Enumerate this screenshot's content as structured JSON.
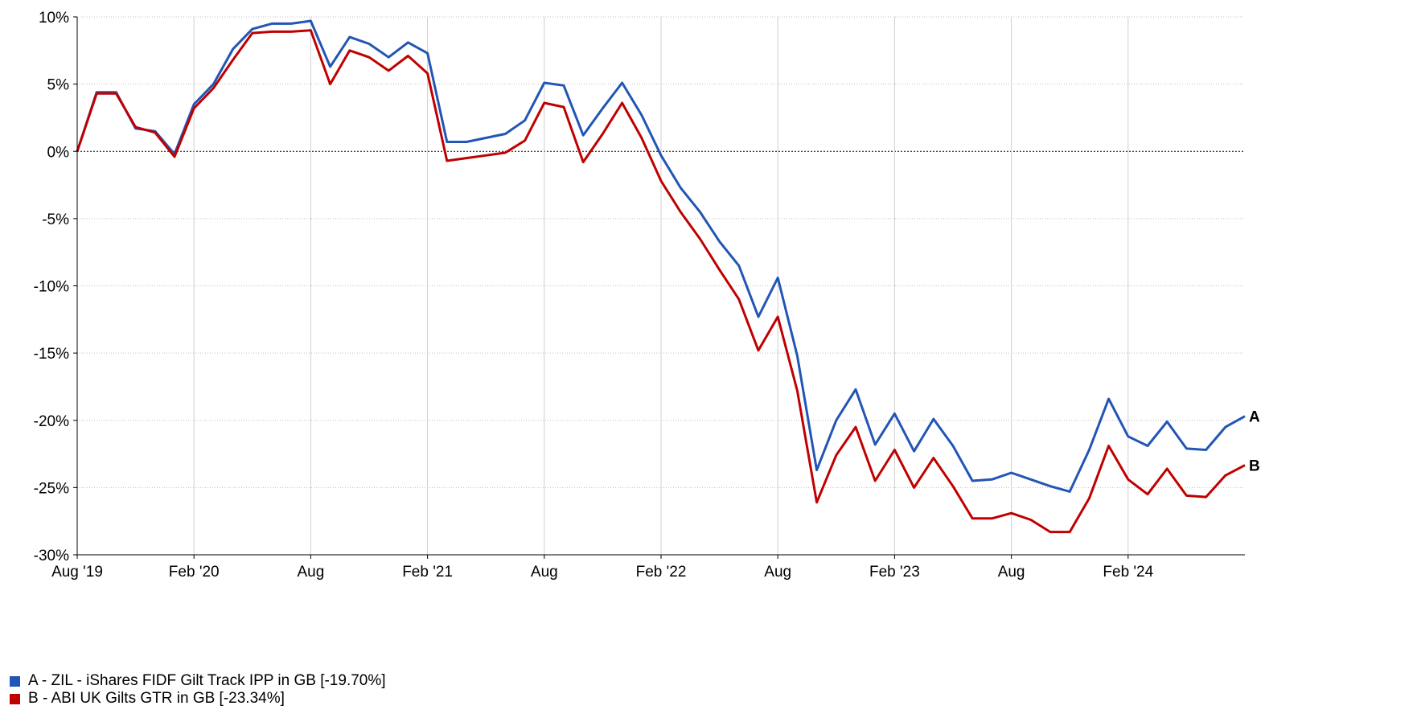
{
  "chart_data": {
    "type": "line",
    "title": "",
    "xlabel": "",
    "ylabel": "",
    "ylim": [
      -30,
      10
    ],
    "y_ticks": [
      "10%",
      "5%",
      "0%",
      "-5%",
      "-10%",
      "-15%",
      "-20%",
      "-25%",
      "-30%"
    ],
    "y_tick_values": [
      10,
      5,
      0,
      -5,
      -10,
      -15,
      -20,
      -25,
      -30
    ],
    "x_ticks": [
      {
        "label": "Aug '19",
        "date": "2019-08"
      },
      {
        "label": "Feb '20",
        "date": "2020-02"
      },
      {
        "label": "Aug",
        "date": "2020-08"
      },
      {
        "label": "Feb '21",
        "date": "2021-02"
      },
      {
        "label": "Aug",
        "date": "2021-08"
      },
      {
        "label": "Feb '22",
        "date": "2022-02"
      },
      {
        "label": "Aug",
        "date": "2022-08"
      },
      {
        "label": "Feb '23",
        "date": "2023-02"
      },
      {
        "label": "Aug",
        "date": "2023-08"
      },
      {
        "label": "Feb '24",
        "date": "2024-02"
      }
    ],
    "xlim": [
      "2019-08",
      "2024-08"
    ],
    "grid": true,
    "zero_line": "dotted",
    "legend_position": "bottom-left",
    "x": [
      "2019-08",
      "2019-09",
      "2019-10",
      "2019-11",
      "2019-12",
      "2020-01",
      "2020-02",
      "2020-03",
      "2020-04",
      "2020-05",
      "2020-06",
      "2020-07",
      "2020-08",
      "2020-09",
      "2020-10",
      "2020-11",
      "2020-12",
      "2021-01",
      "2021-02",
      "2021-03",
      "2021-04",
      "2021-05",
      "2021-06",
      "2021-07",
      "2021-08",
      "2021-09",
      "2021-10",
      "2021-11",
      "2021-12",
      "2022-01",
      "2022-02",
      "2022-03",
      "2022-04",
      "2022-05",
      "2022-06",
      "2022-07",
      "2022-08",
      "2022-09",
      "2022-10",
      "2022-11",
      "2022-12",
      "2023-01",
      "2023-02",
      "2023-03",
      "2023-04",
      "2023-05",
      "2023-06",
      "2023-07",
      "2023-08",
      "2023-09",
      "2023-10",
      "2023-11",
      "2023-12",
      "2024-01",
      "2024-02",
      "2024-03",
      "2024-04",
      "2024-05",
      "2024-06",
      "2024-07",
      "2024-08"
    ],
    "series": [
      {
        "name": "A - ZIL - iShares FIDF Gilt Track IPP in GB [-19.70%]",
        "end_label": "A",
        "color": "#2255b5",
        "values": [
          0,
          4.4,
          4.4,
          1.7,
          1.5,
          -0.2,
          3.5,
          5.0,
          7.6,
          9.1,
          9.5,
          9.5,
          9.7,
          6.3,
          8.5,
          8.0,
          7.0,
          8.1,
          7.3,
          0.7,
          0.7,
          1.0,
          1.3,
          2.3,
          5.1,
          4.9,
          1.2,
          3.2,
          5.1,
          2.7,
          -0.3,
          -2.7,
          -4.5,
          -6.7,
          -8.5,
          -12.3,
          -9.4,
          -15.2,
          -23.7,
          -20.0,
          -17.7,
          -21.8,
          -19.5,
          -22.3,
          -19.9,
          -21.9,
          -24.5,
          -24.4,
          -23.9,
          -24.4,
          -24.9,
          -25.3,
          -22.2,
          -18.4,
          -21.2,
          -21.9,
          -20.1,
          -22.1,
          -22.2,
          -20.5,
          -19.7
        ]
      },
      {
        "name": "B - ABI UK Gilts GTR in GB [-23.34%]",
        "end_label": "B",
        "color": "#c00000",
        "values": [
          0,
          4.3,
          4.3,
          1.8,
          1.4,
          -0.4,
          3.2,
          4.7,
          6.8,
          8.8,
          8.9,
          8.9,
          9.0,
          5.0,
          7.5,
          7.0,
          6.0,
          7.1,
          5.8,
          -0.7,
          -0.5,
          -0.3,
          -0.1,
          0.8,
          3.6,
          3.3,
          -0.8,
          1.3,
          3.6,
          1.0,
          -2.2,
          -4.5,
          -6.5,
          -8.8,
          -11.0,
          -14.8,
          -12.3,
          -17.8,
          -26.1,
          -22.6,
          -20.5,
          -24.5,
          -22.2,
          -25.0,
          -22.8,
          -24.9,
          -27.3,
          -27.3,
          -26.9,
          -27.4,
          -28.3,
          -28.3,
          -25.8,
          -21.9,
          -24.4,
          -25.5,
          -23.6,
          -25.6,
          -25.7,
          -24.1,
          -23.34
        ]
      }
    ]
  }
}
